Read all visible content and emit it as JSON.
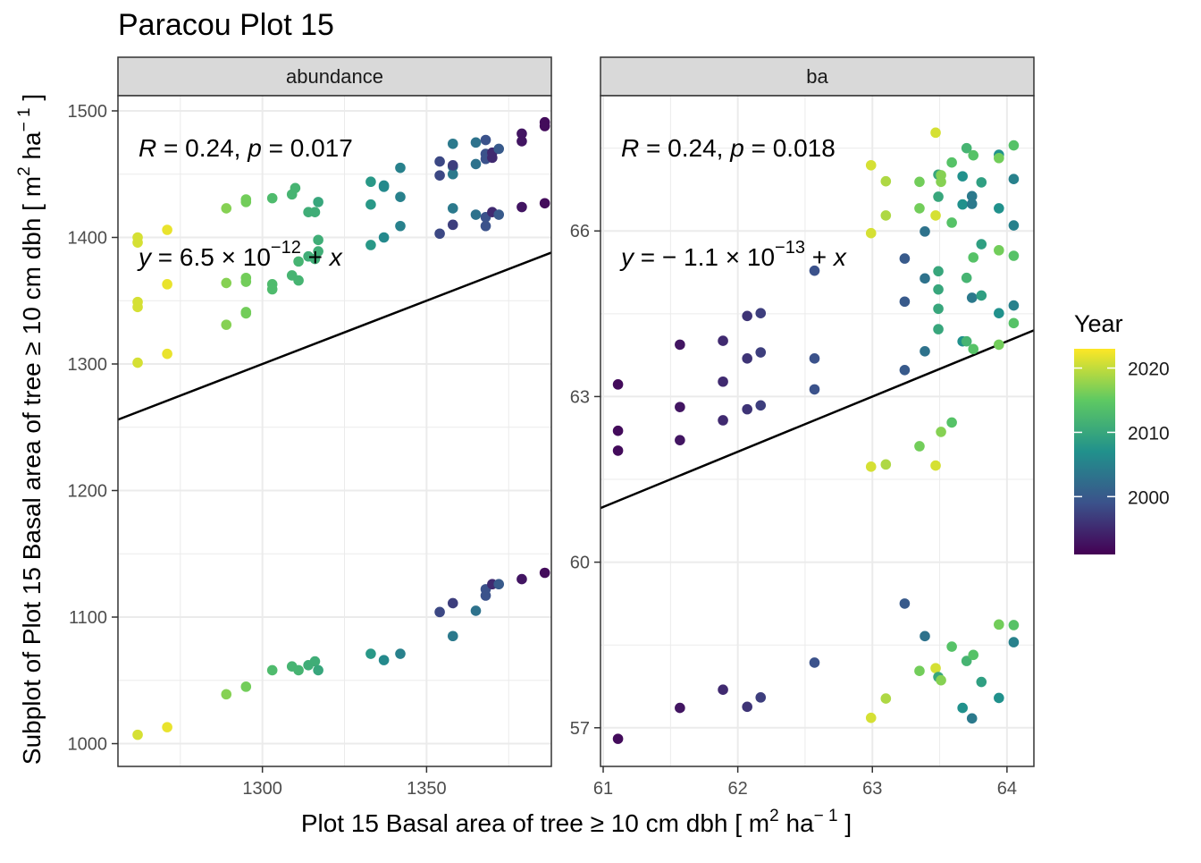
{
  "title": "Paracou Plot 15",
  "y_axis_title": "Subplot of Plot 15 Basal area of tree  ≥ 10 cm dbh [ m² ha⁻¹ ]",
  "x_axis_title": "Plot 15 Basal area of tree  ≥ 10 cm dbh [ m² ha⁻¹ ]",
  "legend": {
    "title": "Year",
    "labels": [
      "2020",
      "2010",
      "2000"
    ],
    "values": [
      2020,
      2010,
      2000
    ],
    "range": [
      1991,
      2023
    ],
    "colors": [
      "#440154",
      "#3b528b",
      "#21918c",
      "#5ec962",
      "#fde725"
    ]
  },
  "panels": [
    {
      "strip": "abundance",
      "stats": {
        "R": "0.24",
        "p": "0.017"
      },
      "equation": {
        "coef": "6.5",
        "exp": "−12",
        "term": "x"
      }
    },
    {
      "strip": "ba",
      "stats": {
        "R": "0.24",
        "p": "0.018"
      },
      "equation": {
        "coef": "− 1.1",
        "exp": "−13",
        "term": "x"
      }
    }
  ],
  "chart_data": [
    {
      "type": "scatter",
      "facet": "abundance",
      "xlim": [
        1256,
        1388
      ],
      "ylim": [
        982,
        1512
      ],
      "x_ticks": [
        1300,
        1350
      ],
      "y_ticks": [
        1000,
        1100,
        1200,
        1300,
        1400,
        1500
      ],
      "line": {
        "intercept": 6.5e-12,
        "slope": 1
      },
      "points": [
        {
          "x": 1262,
          "y": 1396,
          "year": 2021
        },
        {
          "x": 1262,
          "y": 1400,
          "year": 2021
        },
        {
          "x": 1262,
          "y": 1349,
          "year": 2021
        },
        {
          "x": 1262,
          "y": 1345,
          "year": 2021
        },
        {
          "x": 1262,
          "y": 1301,
          "year": 2021
        },
        {
          "x": 1262,
          "y": 1007,
          "year": 2021
        },
        {
          "x": 1271,
          "y": 1406,
          "year": 2022
        },
        {
          "x": 1271,
          "y": 1363,
          "year": 2022
        },
        {
          "x": 1271,
          "y": 1308,
          "year": 2022
        },
        {
          "x": 1271,
          "y": 1013,
          "year": 2022
        },
        {
          "x": 1289,
          "y": 1423,
          "year": 2017
        },
        {
          "x": 1289,
          "y": 1364,
          "year": 2017
        },
        {
          "x": 1289,
          "y": 1331,
          "year": 2017
        },
        {
          "x": 1289,
          "y": 1039,
          "year": 2017
        },
        {
          "x": 1295,
          "y": 1428,
          "year": 2016
        },
        {
          "x": 1295,
          "y": 1430,
          "year": 2016
        },
        {
          "x": 1295,
          "y": 1365,
          "year": 2016
        },
        {
          "x": 1295,
          "y": 1368,
          "year": 2016
        },
        {
          "x": 1295,
          "y": 1340,
          "year": 2016
        },
        {
          "x": 1295,
          "y": 1341,
          "year": 2016
        },
        {
          "x": 1295,
          "y": 1045,
          "year": 2016
        },
        {
          "x": 1303,
          "y": 1431,
          "year": 2013
        },
        {
          "x": 1303,
          "y": 1363,
          "year": 2013
        },
        {
          "x": 1303,
          "y": 1359,
          "year": 2013
        },
        {
          "x": 1303,
          "y": 1058,
          "year": 2013
        },
        {
          "x": 1309,
          "y": 1434,
          "year": 2012
        },
        {
          "x": 1310,
          "y": 1439,
          "year": 2012
        },
        {
          "x": 1309,
          "y": 1370,
          "year": 2012
        },
        {
          "x": 1311,
          "y": 1366,
          "year": 2012
        },
        {
          "x": 1311,
          "y": 1381,
          "year": 2012
        },
        {
          "x": 1309,
          "y": 1061,
          "year": 2012
        },
        {
          "x": 1311,
          "y": 1058,
          "year": 2012
        },
        {
          "x": 1314,
          "y": 1420,
          "year": 2011
        },
        {
          "x": 1316,
          "y": 1420,
          "year": 2011
        },
        {
          "x": 1314,
          "y": 1385,
          "year": 2011
        },
        {
          "x": 1316,
          "y": 1383,
          "year": 2011
        },
        {
          "x": 1317,
          "y": 1389,
          "year": 2011
        },
        {
          "x": 1317,
          "y": 1398,
          "year": 2011
        },
        {
          "x": 1314,
          "y": 1062,
          "year": 2011
        },
        {
          "x": 1316,
          "y": 1065,
          "year": 2011
        },
        {
          "x": 1317,
          "y": 1428,
          "year": 2010
        },
        {
          "x": 1317,
          "y": 1058,
          "year": 2010
        },
        {
          "x": 1333,
          "y": 1444,
          "year": 2008
        },
        {
          "x": 1333,
          "y": 1426,
          "year": 2008
        },
        {
          "x": 1333,
          "y": 1394,
          "year": 2008
        },
        {
          "x": 1333,
          "y": 1071,
          "year": 2008
        },
        {
          "x": 1337,
          "y": 1441,
          "year": 2006
        },
        {
          "x": 1337,
          "y": 1440,
          "year": 2006
        },
        {
          "x": 1337,
          "y": 1400,
          "year": 2006
        },
        {
          "x": 1337,
          "y": 1066,
          "year": 2006
        },
        {
          "x": 1342,
          "y": 1455,
          "year": 2005
        },
        {
          "x": 1342,
          "y": 1432,
          "year": 2005
        },
        {
          "x": 1342,
          "y": 1409,
          "year": 2005
        },
        {
          "x": 1342,
          "y": 1071,
          "year": 2005
        },
        {
          "x": 1354,
          "y": 1460,
          "year": 1998
        },
        {
          "x": 1354,
          "y": 1449,
          "year": 1998
        },
        {
          "x": 1354,
          "y": 1403,
          "year": 1998
        },
        {
          "x": 1354,
          "y": 1104,
          "year": 1998
        },
        {
          "x": 1358,
          "y": 1474,
          "year": 2004
        },
        {
          "x": 1358,
          "y": 1456,
          "year": 2004
        },
        {
          "x": 1358,
          "y": 1450,
          "year": 2004
        },
        {
          "x": 1358,
          "y": 1423,
          "year": 2004
        },
        {
          "x": 1358,
          "y": 1085,
          "year": 2004
        },
        {
          "x": 1358,
          "y": 1457,
          "year": 1997
        },
        {
          "x": 1358,
          "y": 1410,
          "year": 1997
        },
        {
          "x": 1358,
          "y": 1111,
          "year": 1997
        },
        {
          "x": 1365,
          "y": 1475,
          "year": 2003
        },
        {
          "x": 1365,
          "y": 1458,
          "year": 2003
        },
        {
          "x": 1365,
          "y": 1418,
          "year": 2003
        },
        {
          "x": 1365,
          "y": 1105,
          "year": 2003
        },
        {
          "x": 1368,
          "y": 1477,
          "year": 1999
        },
        {
          "x": 1368,
          "y": 1466,
          "year": 1999
        },
        {
          "x": 1368,
          "y": 1462,
          "year": 1999
        },
        {
          "x": 1368,
          "y": 1416,
          "year": 1999
        },
        {
          "x": 1368,
          "y": 1409,
          "year": 1999
        },
        {
          "x": 1368,
          "y": 1117,
          "year": 1999
        },
        {
          "x": 1368,
          "y": 1122,
          "year": 1999
        },
        {
          "x": 1370,
          "y": 1467,
          "year": 1995
        },
        {
          "x": 1370,
          "y": 1463,
          "year": 1995
        },
        {
          "x": 1370,
          "y": 1420,
          "year": 1995
        },
        {
          "x": 1370,
          "y": 1126,
          "year": 1995
        },
        {
          "x": 1372,
          "y": 1470,
          "year": 2000
        },
        {
          "x": 1372,
          "y": 1418,
          "year": 2000
        },
        {
          "x": 1372,
          "y": 1126,
          "year": 2000
        },
        {
          "x": 1379,
          "y": 1482,
          "year": 1993
        },
        {
          "x": 1379,
          "y": 1476,
          "year": 1993
        },
        {
          "x": 1379,
          "y": 1424,
          "year": 1993
        },
        {
          "x": 1379,
          "y": 1130,
          "year": 1993
        },
        {
          "x": 1386,
          "y": 1491,
          "year": 1992
        },
        {
          "x": 1386,
          "y": 1488,
          "year": 1992
        },
        {
          "x": 1386,
          "y": 1427,
          "year": 1992
        },
        {
          "x": 1386,
          "y": 1135,
          "year": 1992
        }
      ]
    },
    {
      "type": "scatter",
      "facet": "ba",
      "xlim": [
        60.98,
        64.2
      ],
      "ylim": [
        56.3,
        68.45
      ],
      "x_ticks": [
        61,
        62,
        63,
        64
      ],
      "y_ticks": [
        57,
        60,
        63,
        66
      ],
      "line": {
        "intercept": -1.1e-13,
        "slope": 1
      },
      "points": [
        {
          "x": 61.11,
          "y": 63.22,
          "year": 1992
        },
        {
          "x": 61.11,
          "y": 62.38,
          "year": 1992
        },
        {
          "x": 61.11,
          "y": 62.02,
          "year": 1992
        },
        {
          "x": 61.11,
          "y": 56.8,
          "year": 1992
        },
        {
          "x": 61.57,
          "y": 63.94,
          "year": 1993
        },
        {
          "x": 61.57,
          "y": 62.81,
          "year": 1993
        },
        {
          "x": 61.57,
          "y": 62.21,
          "year": 1993
        },
        {
          "x": 61.57,
          "y": 57.36,
          "year": 1993
        },
        {
          "x": 61.89,
          "y": 64.01,
          "year": 1995
        },
        {
          "x": 61.89,
          "y": 63.27,
          "year": 1995
        },
        {
          "x": 61.89,
          "y": 62.57,
          "year": 1995
        },
        {
          "x": 61.89,
          "y": 57.69,
          "year": 1995
        },
        {
          "x": 62.07,
          "y": 64.46,
          "year": 1996
        },
        {
          "x": 62.07,
          "y": 63.69,
          "year": 1996
        },
        {
          "x": 62.07,
          "y": 62.77,
          "year": 1996
        },
        {
          "x": 62.07,
          "y": 57.38,
          "year": 1996
        },
        {
          "x": 62.17,
          "y": 64.51,
          "year": 1997
        },
        {
          "x": 62.17,
          "y": 63.8,
          "year": 1997
        },
        {
          "x": 62.17,
          "y": 62.84,
          "year": 1997
        },
        {
          "x": 62.17,
          "y": 57.55,
          "year": 1997
        },
        {
          "x": 62.57,
          "y": 65.28,
          "year": 1999
        },
        {
          "x": 62.57,
          "y": 63.69,
          "year": 1999
        },
        {
          "x": 62.57,
          "y": 63.13,
          "year": 1999
        },
        {
          "x": 62.57,
          "y": 58.18,
          "year": 1999
        },
        {
          "x": 62.99,
          "y": 67.19,
          "year": 2021
        },
        {
          "x": 62.99,
          "y": 65.96,
          "year": 2021
        },
        {
          "x": 62.99,
          "y": 61.73,
          "year": 2021
        },
        {
          "x": 62.99,
          "y": 57.18,
          "year": 2021
        },
        {
          "x": 63.1,
          "y": 66.9,
          "year": 2019
        },
        {
          "x": 63.1,
          "y": 66.28,
          "year": 2019
        },
        {
          "x": 63.1,
          "y": 61.77,
          "year": 2019
        },
        {
          "x": 63.1,
          "y": 57.53,
          "year": 2019
        },
        {
          "x": 63.24,
          "y": 65.5,
          "year": 2000
        },
        {
          "x": 63.24,
          "y": 64.72,
          "year": 2000
        },
        {
          "x": 63.24,
          "y": 63.48,
          "year": 2000
        },
        {
          "x": 63.24,
          "y": 59.25,
          "year": 2000
        },
        {
          "x": 63.35,
          "y": 66.89,
          "year": 2016
        },
        {
          "x": 63.35,
          "y": 66.41,
          "year": 2016
        },
        {
          "x": 63.35,
          "y": 62.1,
          "year": 2016
        },
        {
          "x": 63.35,
          "y": 58.03,
          "year": 2016
        },
        {
          "x": 63.39,
          "y": 65.99,
          "year": 2003
        },
        {
          "x": 63.39,
          "y": 65.14,
          "year": 2003
        },
        {
          "x": 63.39,
          "y": 63.82,
          "year": 2003
        },
        {
          "x": 63.39,
          "y": 58.66,
          "year": 2003
        },
        {
          "x": 63.47,
          "y": 67.78,
          "year": 2021
        },
        {
          "x": 63.47,
          "y": 66.28,
          "year": 2021
        },
        {
          "x": 63.47,
          "y": 61.75,
          "year": 2021
        },
        {
          "x": 63.47,
          "y": 58.08,
          "year": 2021
        },
        {
          "x": 63.49,
          "y": 67.02,
          "year": 2010
        },
        {
          "x": 63.49,
          "y": 66.62,
          "year": 2010
        },
        {
          "x": 63.49,
          "y": 65.27,
          "year": 2010
        },
        {
          "x": 63.49,
          "y": 64.94,
          "year": 2010
        },
        {
          "x": 63.49,
          "y": 64.59,
          "year": 2010
        },
        {
          "x": 63.49,
          "y": 64.22,
          "year": 2010
        },
        {
          "x": 63.49,
          "y": 57.92,
          "year": 2010
        },
        {
          "x": 63.51,
          "y": 67.01,
          "year": 2017
        },
        {
          "x": 63.51,
          "y": 66.89,
          "year": 2017
        },
        {
          "x": 63.51,
          "y": 62.36,
          "year": 2017
        },
        {
          "x": 63.51,
          "y": 57.86,
          "year": 2017
        },
        {
          "x": 63.59,
          "y": 67.24,
          "year": 2014
        },
        {
          "x": 63.59,
          "y": 66.15,
          "year": 2014
        },
        {
          "x": 63.59,
          "y": 62.53,
          "year": 2014
        },
        {
          "x": 63.59,
          "y": 58.47,
          "year": 2014
        },
        {
          "x": 63.67,
          "y": 66.99,
          "year": 2007
        },
        {
          "x": 63.67,
          "y": 66.48,
          "year": 2007
        },
        {
          "x": 63.67,
          "y": 64.0,
          "year": 2007
        },
        {
          "x": 63.67,
          "y": 57.36,
          "year": 2007
        },
        {
          "x": 63.7,
          "y": 67.5,
          "year": 2012
        },
        {
          "x": 63.7,
          "y": 65.15,
          "year": 2012
        },
        {
          "x": 63.7,
          "y": 64.0,
          "year": 2012
        },
        {
          "x": 63.7,
          "y": 58.21,
          "year": 2012
        },
        {
          "x": 63.74,
          "y": 66.63,
          "year": 2004
        },
        {
          "x": 63.74,
          "y": 66.49,
          "year": 2004
        },
        {
          "x": 63.74,
          "y": 64.79,
          "year": 2004
        },
        {
          "x": 63.74,
          "y": 57.17,
          "year": 2004
        },
        {
          "x": 63.75,
          "y": 67.37,
          "year": 2014
        },
        {
          "x": 63.75,
          "y": 65.52,
          "year": 2014
        },
        {
          "x": 63.75,
          "y": 63.86,
          "year": 2014
        },
        {
          "x": 63.75,
          "y": 58.32,
          "year": 2014
        },
        {
          "x": 63.81,
          "y": 66.88,
          "year": 2009
        },
        {
          "x": 63.81,
          "y": 65.76,
          "year": 2009
        },
        {
          "x": 63.81,
          "y": 64.83,
          "year": 2009
        },
        {
          "x": 63.81,
          "y": 57.83,
          "year": 2009
        },
        {
          "x": 63.94,
          "y": 67.38,
          "year": 2007
        },
        {
          "x": 63.94,
          "y": 66.41,
          "year": 2007
        },
        {
          "x": 63.94,
          "y": 64.51,
          "year": 2007
        },
        {
          "x": 63.94,
          "y": 57.54,
          "year": 2007
        },
        {
          "x": 63.94,
          "y": 67.32,
          "year": 2016
        },
        {
          "x": 63.94,
          "y": 65.65,
          "year": 2016
        },
        {
          "x": 63.94,
          "y": 63.94,
          "year": 2016
        },
        {
          "x": 63.94,
          "y": 58.87,
          "year": 2016
        },
        {
          "x": 64.05,
          "y": 66.94,
          "year": 2005
        },
        {
          "x": 64.05,
          "y": 66.1,
          "year": 2005
        },
        {
          "x": 64.05,
          "y": 64.65,
          "year": 2005
        },
        {
          "x": 64.05,
          "y": 58.55,
          "year": 2005
        },
        {
          "x": 64.05,
          "y": 67.55,
          "year": 2014
        },
        {
          "x": 64.05,
          "y": 65.55,
          "year": 2014
        },
        {
          "x": 64.05,
          "y": 64.33,
          "year": 2014
        },
        {
          "x": 64.05,
          "y": 58.86,
          "year": 2014
        }
      ]
    }
  ]
}
